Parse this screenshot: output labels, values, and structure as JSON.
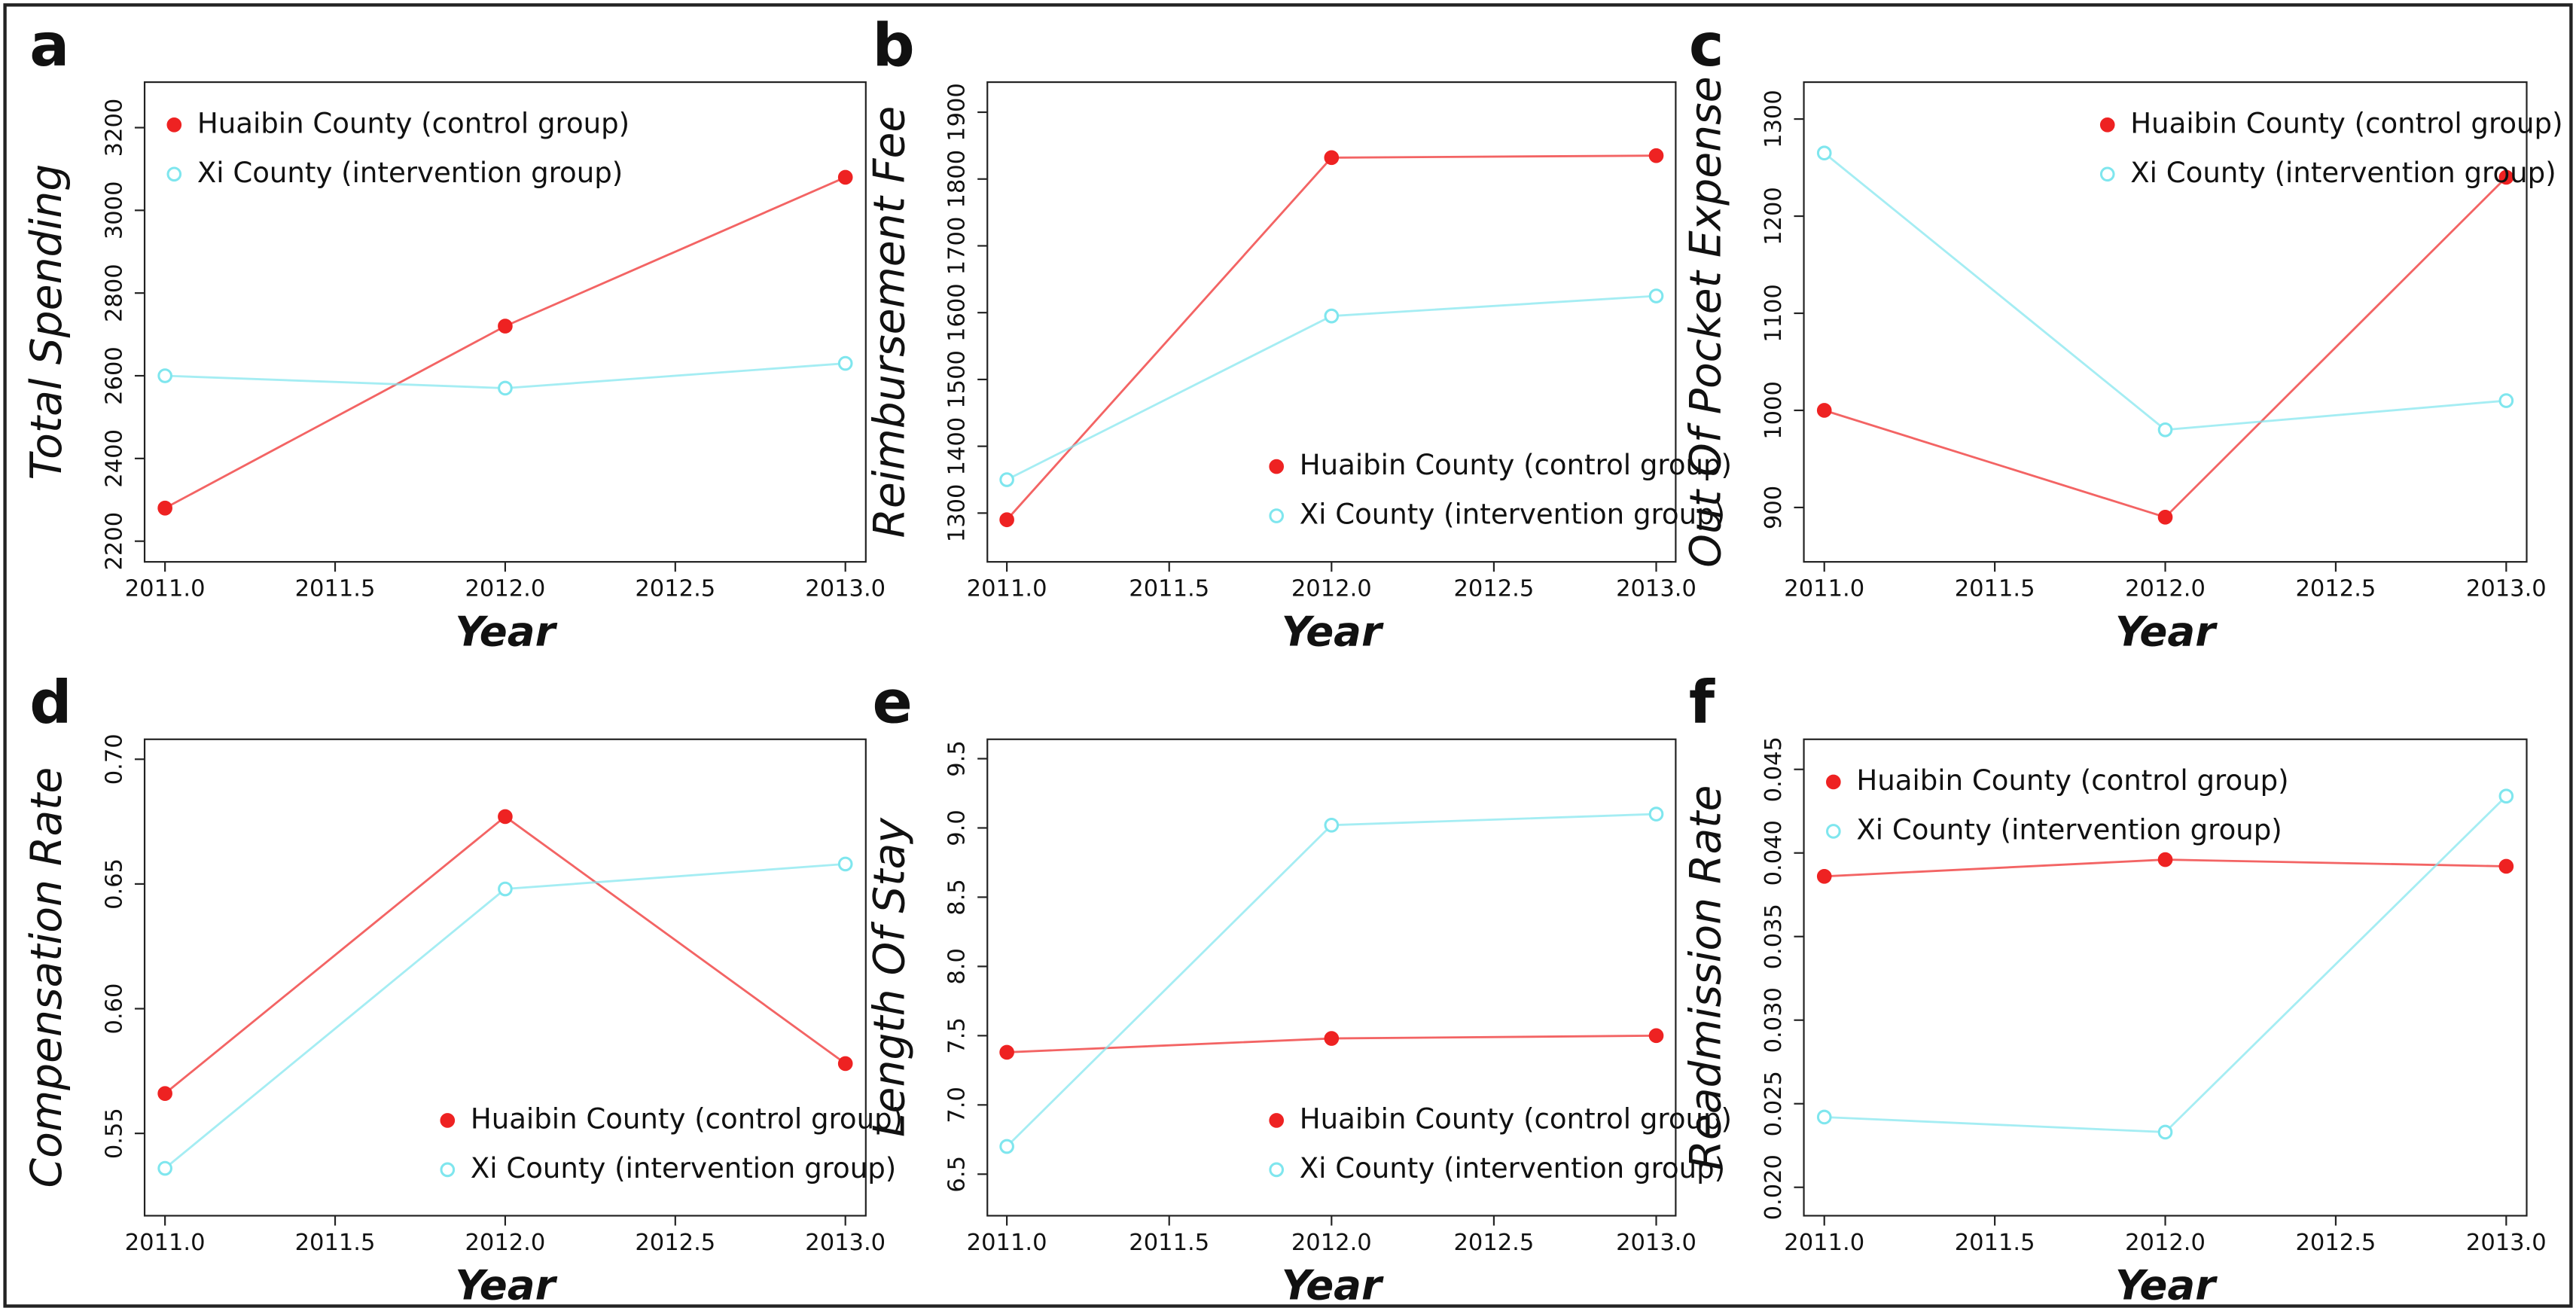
{
  "chart_data": [
    {
      "type": "line",
      "panel_label": "a",
      "ylabel": "Total Spending",
      "xlabel": "Year",
      "legend": "upper left",
      "x": [
        2011,
        2012,
        2013
      ],
      "xlim": [
        2010.94,
        2013.06
      ],
      "xticks": [
        {
          "value": 2011,
          "label": "2011.0"
        },
        {
          "value": 2011.5,
          "label": "2011.5"
        },
        {
          "value": 2012,
          "label": "2012.0"
        },
        {
          "value": 2012.5,
          "label": "2012.5"
        },
        {
          "value": 2013,
          "label": "2013.0"
        }
      ],
      "ylim": [
        2150,
        3310
      ],
      "yticks": [
        2200,
        2400,
        2600,
        2800,
        3000,
        3200
      ],
      "series": [
        {
          "name": "Huaibin County (control group)",
          "color": "#ee2222",
          "values": [
            2280,
            2720,
            3080
          ]
        },
        {
          "name": "Xi County (intervention group)",
          "color": "#7fe6ee",
          "values": [
            2600,
            2570,
            2630
          ]
        }
      ]
    },
    {
      "type": "line",
      "panel_label": "b",
      "ylabel": "Reimbursement Fee",
      "xlabel": "Year",
      "legend": "lower right",
      "x": [
        2011,
        2012,
        2013
      ],
      "xlim": [
        2010.94,
        2013.06
      ],
      "xticks": [
        {
          "value": 2011,
          "label": "2011.0"
        },
        {
          "value": 2011.5,
          "label": "2011.5"
        },
        {
          "value": 2012,
          "label": "2012.0"
        },
        {
          "value": 2012.5,
          "label": "2012.5"
        },
        {
          "value": 2013,
          "label": "2013.0"
        }
      ],
      "ylim": [
        1227,
        1945
      ],
      "yticks": [
        1300,
        1400,
        1500,
        1600,
        1700,
        1800,
        1900
      ],
      "series": [
        {
          "name": "Huaibin County (control group)",
          "color": "#ee2222",
          "values": [
            1290,
            1832,
            1835
          ]
        },
        {
          "name": "Xi County (intervention group)",
          "color": "#7fe6ee",
          "values": [
            1350,
            1595,
            1625
          ]
        }
      ]
    },
    {
      "type": "line",
      "panel_label": "c",
      "ylabel": "Out Of Pocket Expense",
      "xlabel": "Year",
      "legend": "upper right",
      "x": [
        2011,
        2012,
        2013
      ],
      "xlim": [
        2010.94,
        2013.06
      ],
      "xticks": [
        {
          "value": 2011,
          "label": "2011.0"
        },
        {
          "value": 2011.5,
          "label": "2011.5"
        },
        {
          "value": 2012,
          "label": "2012.0"
        },
        {
          "value": 2012.5,
          "label": "2012.5"
        },
        {
          "value": 2013,
          "label": "2013.0"
        }
      ],
      "ylim": [
        844,
        1338
      ],
      "yticks": [
        900,
        1000,
        1100,
        1200,
        1300
      ],
      "series": [
        {
          "name": "Huaibin County (control group)",
          "color": "#ee2222",
          "values": [
            1000,
            890,
            1240
          ]
        },
        {
          "name": "Xi County (intervention group)",
          "color": "#7fe6ee",
          "values": [
            1265,
            980,
            1010
          ]
        }
      ]
    },
    {
      "type": "line",
      "panel_label": "d",
      "ylabel": "Compensation Rate",
      "xlabel": "Year",
      "legend": "lower right",
      "x": [
        2011,
        2012,
        2013
      ],
      "xlim": [
        2010.94,
        2013.06
      ],
      "xticks": [
        {
          "value": 2011,
          "label": "2011.0"
        },
        {
          "value": 2011.5,
          "label": "2011.5"
        },
        {
          "value": 2012,
          "label": "2012.0"
        },
        {
          "value": 2012.5,
          "label": "2012.5"
        },
        {
          "value": 2013,
          "label": "2013.0"
        }
      ],
      "ylim": [
        0.517,
        0.708
      ],
      "yticks": [
        0.55,
        {
          "value": 0.6,
          "label": "0.60"
        },
        0.65,
        {
          "value": 0.7,
          "label": "0.70"
        }
      ],
      "series": [
        {
          "name": "Huaibin County (control group)",
          "color": "#ee2222",
          "values": [
            0.566,
            0.677,
            0.578
          ]
        },
        {
          "name": "Xi County (intervention group)",
          "color": "#7fe6ee",
          "values": [
            0.536,
            0.648,
            0.658
          ]
        }
      ]
    },
    {
      "type": "line",
      "panel_label": "e",
      "ylabel": "Length Of Stay",
      "xlabel": "Year",
      "legend": "lower right",
      "x": [
        2011,
        2012,
        2013
      ],
      "xlim": [
        2010.94,
        2013.06
      ],
      "xticks": [
        {
          "value": 2011,
          "label": "2011.0"
        },
        {
          "value": 2011.5,
          "label": "2011.5"
        },
        {
          "value": 2012,
          "label": "2012.0"
        },
        {
          "value": 2012.5,
          "label": "2012.5"
        },
        {
          "value": 2013,
          "label": "2013.0"
        }
      ],
      "ylim": [
        6.2,
        9.64
      ],
      "yticks": [
        6.5,
        {
          "value": 7,
          "label": "7.0"
        },
        7.5,
        {
          "value": 8,
          "label": "8.0"
        },
        8.5,
        {
          "value": 9,
          "label": "9.0"
        },
        9.5
      ],
      "series": [
        {
          "name": "Huaibin County (control group)",
          "color": "#ee2222",
          "values": [
            7.38,
            7.48,
            7.5
          ]
        },
        {
          "name": "Xi County (intervention group)",
          "color": "#7fe6ee",
          "values": [
            6.7,
            9.02,
            9.1
          ]
        }
      ]
    },
    {
      "type": "line",
      "panel_label": "f",
      "ylabel": "Readmission Rate",
      "xlabel": "Year",
      "legend": "upper left",
      "x": [
        2011,
        2012,
        2013
      ],
      "xlim": [
        2010.94,
        2013.06
      ],
      "xticks": [
        {
          "value": 2011,
          "label": "2011.0"
        },
        {
          "value": 2011.5,
          "label": "2011.5"
        },
        {
          "value": 2012,
          "label": "2012.0"
        },
        {
          "value": 2012.5,
          "label": "2012.5"
        },
        {
          "value": 2013,
          "label": "2013.0"
        }
      ],
      "ylim": [
        0.0183,
        0.0468
      ],
      "yticks": [
        {
          "value": 0.02,
          "label": "0.020"
        },
        0.025,
        {
          "value": 0.03,
          "label": "0.030"
        },
        0.035,
        {
          "value": 0.04,
          "label": "0.040"
        },
        0.045
      ],
      "series": [
        {
          "name": "Huaibin County (control group)",
          "color": "#ee2222",
          "values": [
            0.0386,
            0.0396,
            0.0392
          ]
        },
        {
          "name": "Xi County (intervention group)",
          "color": "#7fe6ee",
          "values": [
            0.0242,
            0.0233,
            0.0434
          ]
        }
      ]
    }
  ]
}
